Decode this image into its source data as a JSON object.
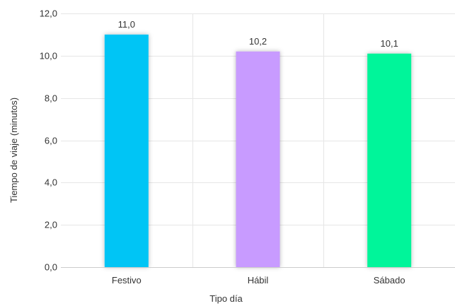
{
  "chart_data": {
    "type": "bar",
    "title": "",
    "xlabel": "Tipo día",
    "ylabel": "Tiempo de viaje (minutos)",
    "categories": [
      "Festivo",
      "Hábil",
      "Sábado"
    ],
    "values": [
      11.0,
      10.2,
      10.1
    ],
    "value_labels": [
      "11,0",
      "10,2",
      "10,1"
    ],
    "colors": [
      "#00c5f5",
      "#c89bff",
      "#00f59a"
    ],
    "ylim": [
      0,
      12
    ],
    "yticks": [
      0,
      2,
      4,
      6,
      8,
      10,
      12
    ],
    "ytick_labels": [
      "0,0",
      "2,0",
      "4,0",
      "6,0",
      "8,0",
      "10,0",
      "12,0"
    ],
    "grid": true,
    "legend": "none"
  }
}
